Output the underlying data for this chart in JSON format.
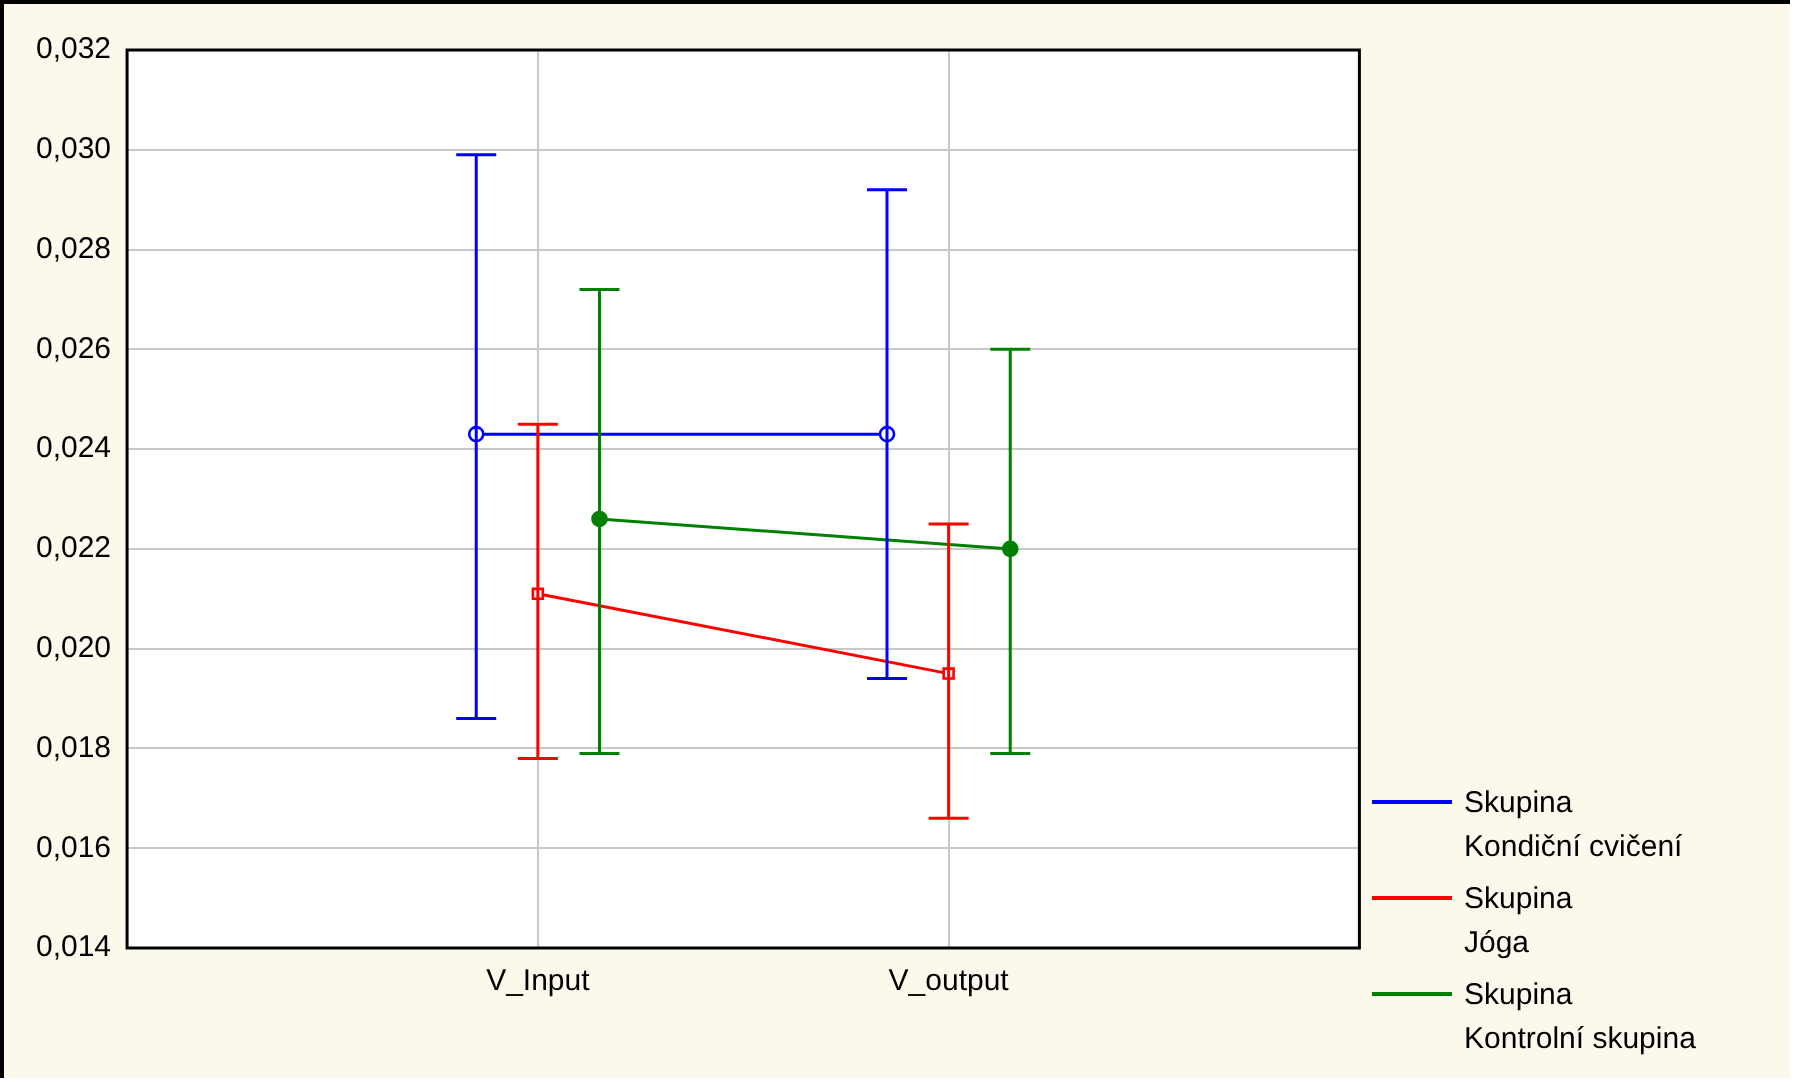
{
  "chart_data": {
    "type": "line",
    "categories": [
      "V_Input",
      "V_output"
    ],
    "ylim": [
      0.014,
      0.032
    ],
    "yticks": [
      {
        "value": 0.014,
        "label": "0,014"
      },
      {
        "value": 0.016,
        "label": "0,016"
      },
      {
        "value": 0.018,
        "label": "0,018"
      },
      {
        "value": 0.02,
        "label": "0,020"
      },
      {
        "value": 0.022,
        "label": "0,022"
      },
      {
        "value": 0.024,
        "label": "0,024"
      },
      {
        "value": 0.026,
        "label": "0,026"
      },
      {
        "value": 0.028,
        "label": "0,028"
      },
      {
        "value": 0.03,
        "label": "0,030"
      },
      {
        "value": 0.032,
        "label": "0,032"
      }
    ],
    "grid": true,
    "legend": "bottom right",
    "line_style": "solid",
    "series": [
      {
        "name": "Skupina\nKondiční cvičení",
        "color": "#0000ff",
        "marker": "circle",
        "values": [
          0.0243,
          0.0243
        ],
        "errors": [
          [
            0.0186,
            0.0299
          ],
          [
            0.0194,
            0.0292
          ]
        ]
      },
      {
        "name": "Skupina\nJóga",
        "color": "#ff0000",
        "marker": "square",
        "values": [
          0.0211,
          0.0195
        ],
        "errors": [
          [
            0.0178,
            0.0245
          ],
          [
            0.0166,
            0.0225
          ]
        ]
      },
      {
        "name": "Skupina\nKontrolní skupina",
        "color": "#008000",
        "marker": "circle",
        "values": [
          0.0226,
          0.022
        ],
        "errors": [
          [
            0.0179,
            0.0272
          ],
          [
            0.0179,
            0.026
          ]
        ]
      }
    ]
  }
}
